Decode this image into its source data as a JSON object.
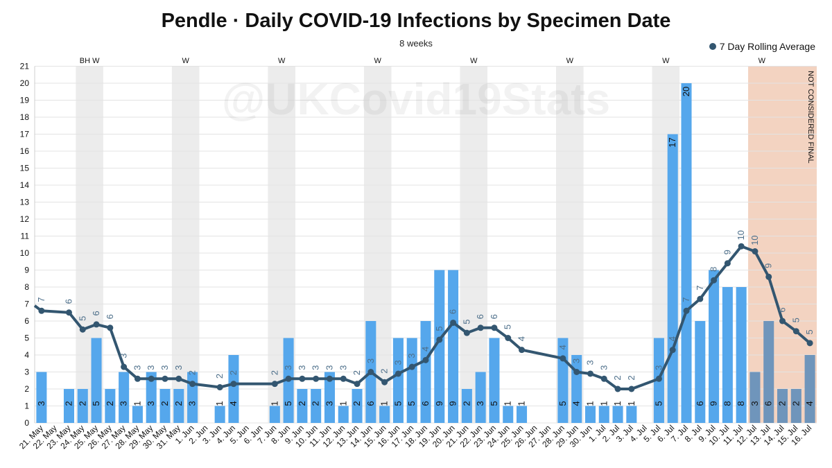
{
  "chart_data": {
    "type": "bar",
    "title": "Pendle · Daily COVID-19 Infections by Specimen Date",
    "subtitle": "8 weeks",
    "watermark": "@UKCovid19Stats",
    "not_final_label": "NOT CONSIDERED FINAL",
    "ylim": [
      0,
      21
    ],
    "yticks": [
      0,
      1,
      2,
      3,
      4,
      5,
      6,
      7,
      8,
      9,
      10,
      11,
      12,
      13,
      14,
      15,
      16,
      17,
      18,
      19,
      20,
      21
    ],
    "categories": [
      "21. May",
      "22. May",
      "23. May",
      "24. May",
      "25. May",
      "26. May",
      "27. May",
      "28. May",
      "29. May",
      "30. May",
      "31. May",
      "1. Jun",
      "2. Jun",
      "3. Jun",
      "4. Jun",
      "5. Jun",
      "6. Jun",
      "7. Jun",
      "8. Jun",
      "9. Jun",
      "10. Jun",
      "11. Jun",
      "12. Jun",
      "13. Jun",
      "14. Jun",
      "15. Jun",
      "16. Jun",
      "17. Jun",
      "18. Jun",
      "19. Jun",
      "20. Jun",
      "21. Jun",
      "22. Jun",
      "23. Jun",
      "24. Jun",
      "25. Jun",
      "26. Jun",
      "27. Jun",
      "28. Jun",
      "29. Jun",
      "30. Jun",
      "1. Jul",
      "2. Jul",
      "3. Jul",
      "4. Jul",
      "5. Jul",
      "6. Jul",
      "7. Jul",
      "8. Jul",
      "9. Jul",
      "10. Jul",
      "11. Jul",
      "12. Jul",
      "13. Jul",
      "14. Jul",
      "15. Jul",
      "16. Jul"
    ],
    "series": [
      {
        "values": [
          3,
          0,
          2,
          2,
          5,
          2,
          3,
          1,
          3,
          2,
          2,
          3,
          0,
          1,
          4,
          0,
          0,
          1,
          5,
          2,
          2,
          3,
          1,
          2,
          6,
          1,
          5,
          5,
          6,
          9,
          9,
          2,
          3,
          5,
          1,
          1,
          0,
          0,
          5,
          4,
          1,
          1,
          1,
          1,
          0,
          5,
          17,
          20,
          6,
          9,
          8,
          8,
          3,
          6,
          2,
          2,
          4
        ]
      },
      {
        "name": "7 Day Rolling Average",
        "values": [
          6.6,
          null,
          6.5,
          5.5,
          5.8,
          5.6,
          3.3,
          2.6,
          2.6,
          2.6,
          2.6,
          2.3,
          null,
          2.1,
          2.3,
          null,
          null,
          2.3,
          2.6,
          2.6,
          2.6,
          2.6,
          2.6,
          2.3,
          3.0,
          2.4,
          2.9,
          3.3,
          3.7,
          4.9,
          5.9,
          5.3,
          5.6,
          5.6,
          5.0,
          4.3,
          null,
          null,
          3.8,
          3.0,
          2.9,
          2.6,
          2.0,
          2.0,
          null,
          2.6,
          4.3,
          6.6,
          7.3,
          8.4,
          9.4,
          10.4,
          10.1,
          8.6,
          6.0,
          5.4,
          4.7
        ],
        "labels": [
          "7",
          "",
          "6",
          "5",
          "6",
          "6",
          "3",
          "3",
          "3",
          "3",
          "3",
          "2",
          "",
          "2",
          "2",
          "",
          "",
          "2",
          "3",
          "3",
          "3",
          "3",
          "3",
          "2",
          "3",
          "2",
          "3",
          "3",
          "4",
          "5",
          "6",
          "5",
          "6",
          "6",
          "5",
          "4",
          "",
          "",
          "4",
          "3",
          "3",
          "3",
          "2",
          "2",
          "",
          "3",
          "4",
          "7",
          "7",
          "8",
          "9",
          "10",
          "10",
          "9",
          "6",
          "5",
          "5"
        ]
      }
    ],
    "line_start_value": 6.9,
    "weekend_markers": [
      {
        "index": 3,
        "label": "BH W"
      },
      {
        "index": 10,
        "label": "W"
      },
      {
        "index": 17,
        "label": "W"
      },
      {
        "index": 24,
        "label": "W"
      },
      {
        "index": 31,
        "label": "W"
      },
      {
        "index": 38,
        "label": "W"
      },
      {
        "index": 45,
        "label": "W"
      },
      {
        "index": 52,
        "label": "W"
      }
    ],
    "not_final_from_index": 52,
    "colors": {
      "bar": "#55a7ec",
      "bar_not_final": "#6f95bb",
      "line": "#335670",
      "weekend_band": "#ececec",
      "not_final_band": "#f3d3c1",
      "bar_label": "#111111",
      "avg_label": "#4d6f8a"
    }
  }
}
